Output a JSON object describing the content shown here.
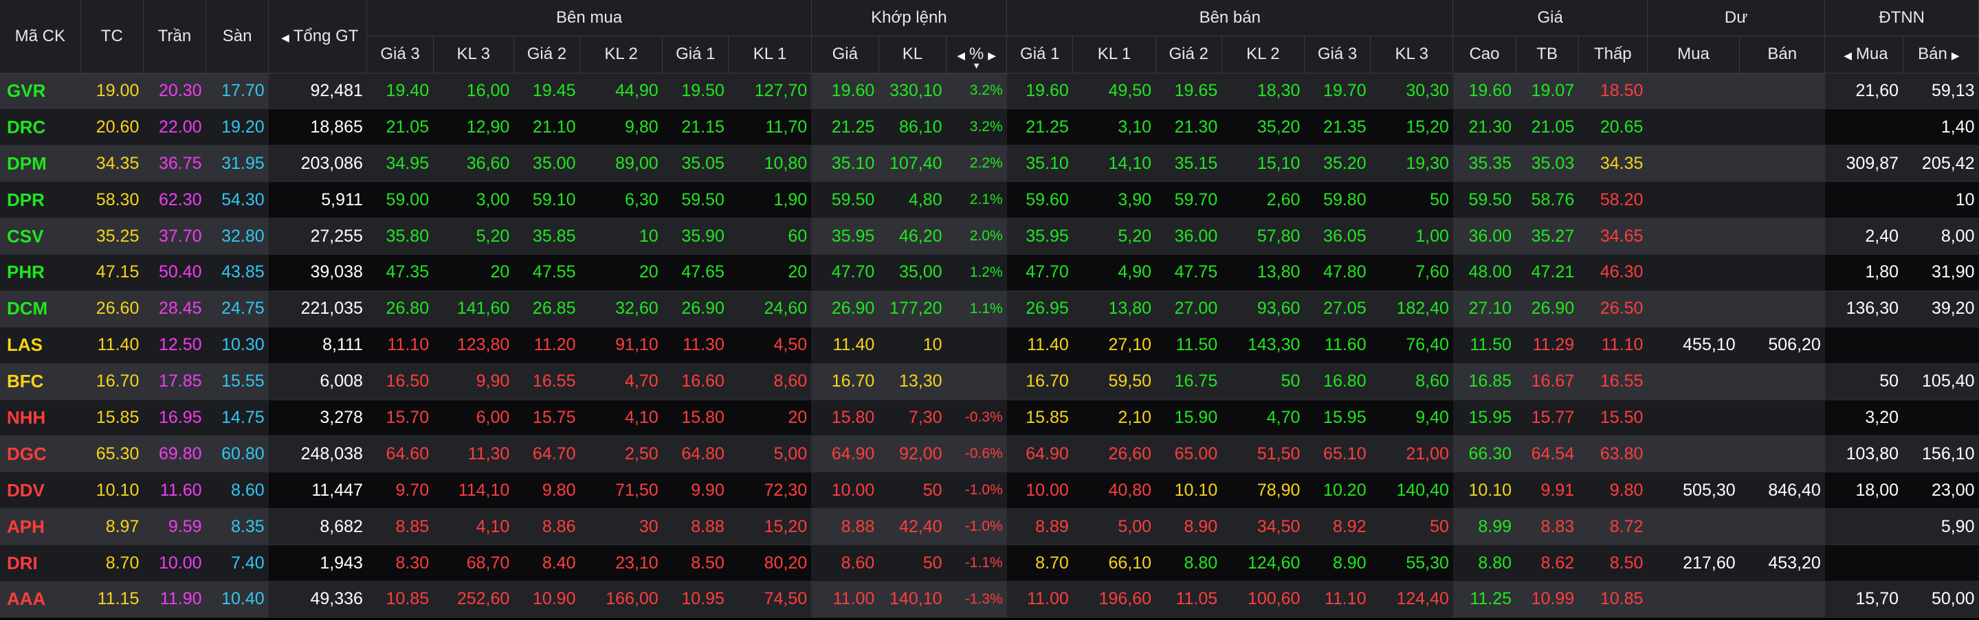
{
  "headers": {
    "symbol": "Mã CK",
    "tc": "TC",
    "tran": "Trần",
    "san": "Sàn",
    "tong_gt": "Tổng GT",
    "ben_mua": "Bên mua",
    "khop_lenh": "Khớp lệnh",
    "ben_ban": "Bên bán",
    "gia": "Giá",
    "du": "Dư",
    "dtnn": "ĐTNN",
    "gia3": "Giá 3",
    "kl3": "KL 3",
    "gia2": "Giá 2",
    "kl2": "KL 2",
    "gia1": "Giá 1",
    "kl1": "KL 1",
    "khop_gia": "Giá",
    "khop_kl": "KL",
    "pct": "%",
    "cao": "Cao",
    "tb": "TB",
    "thap": "Thấp",
    "du_mua": "Mua",
    "du_ban": "Bán",
    "nn_mua": "Mua",
    "nn_ban": "Bán"
  },
  "colors": {
    "up": "#1ee81e",
    "down": "#ff3d3d",
    "ref": "#f7d417",
    "ceil": "#f23cf2",
    "floor": "#2ec8f0",
    "white": "#ffffff"
  },
  "rows": [
    {
      "c": [
        "GVR",
        "19.00",
        "20.30",
        "17.70",
        "92,481",
        "19.40",
        "16,00",
        "19.45",
        "44,90",
        "19.50",
        "127,70",
        "19.60",
        "330,10",
        "3.2%",
        "19.60",
        "49,50",
        "19.65",
        "18,30",
        "19.70",
        "30,30",
        "19.60",
        "19.07",
        "18.50",
        "",
        "",
        "21,60",
        "59,13"
      ],
      "k": [
        "up",
        "ref",
        "ceil",
        "floor",
        "white",
        "up",
        "up",
        "up",
        "up",
        "up",
        "up",
        "up",
        "up",
        "up",
        "up",
        "up",
        "up",
        "up",
        "up",
        "up",
        "up",
        "up",
        "down",
        "white",
        "white",
        "white",
        "white"
      ]
    },
    {
      "c": [
        "DRC",
        "20.60",
        "22.00",
        "19.20",
        "18,865",
        "21.05",
        "12,90",
        "21.10",
        "9,80",
        "21.15",
        "11,70",
        "21.25",
        "86,10",
        "3.2%",
        "21.25",
        "3,10",
        "21.30",
        "35,20",
        "21.35",
        "15,20",
        "21.30",
        "21.05",
        "20.65",
        "",
        "",
        "",
        "1,40"
      ],
      "k": [
        "up",
        "ref",
        "ceil",
        "floor",
        "white",
        "up",
        "up",
        "up",
        "up",
        "up",
        "up",
        "up",
        "up",
        "up",
        "up",
        "up",
        "up",
        "up",
        "up",
        "up",
        "up",
        "up",
        "up",
        "white",
        "white",
        "white",
        "white"
      ]
    },
    {
      "c": [
        "DPM",
        "34.35",
        "36.75",
        "31.95",
        "203,086",
        "34.95",
        "36,60",
        "35.00",
        "89,00",
        "35.05",
        "10,80",
        "35.10",
        "107,40",
        "2.2%",
        "35.10",
        "14,10",
        "35.15",
        "15,10",
        "35.20",
        "19,30",
        "35.35",
        "35.03",
        "34.35",
        "",
        "",
        "309,87",
        "205,42"
      ],
      "k": [
        "up",
        "ref",
        "ceil",
        "floor",
        "white",
        "up",
        "up",
        "up",
        "up",
        "up",
        "up",
        "up",
        "up",
        "up",
        "up",
        "up",
        "up",
        "up",
        "up",
        "up",
        "up",
        "up",
        "ref",
        "white",
        "white",
        "white",
        "white"
      ]
    },
    {
      "c": [
        "DPR",
        "58.30",
        "62.30",
        "54.30",
        "5,911",
        "59.00",
        "3,00",
        "59.10",
        "6,30",
        "59.50",
        "1,90",
        "59.50",
        "4,80",
        "2.1%",
        "59.60",
        "3,90",
        "59.70",
        "2,60",
        "59.80",
        "50",
        "59.50",
        "58.76",
        "58.20",
        "",
        "",
        "",
        "10"
      ],
      "k": [
        "up",
        "ref",
        "ceil",
        "floor",
        "white",
        "up",
        "up",
        "up",
        "up",
        "up",
        "up",
        "up",
        "up",
        "up",
        "up",
        "up",
        "up",
        "up",
        "up",
        "up",
        "up",
        "up",
        "down",
        "white",
        "white",
        "white",
        "white"
      ]
    },
    {
      "c": [
        "CSV",
        "35.25",
        "37.70",
        "32.80",
        "27,255",
        "35.80",
        "5,20",
        "35.85",
        "10",
        "35.90",
        "60",
        "35.95",
        "46,20",
        "2.0%",
        "35.95",
        "5,20",
        "36.00",
        "57,80",
        "36.05",
        "1,00",
        "36.00",
        "35.27",
        "34.65",
        "",
        "",
        "2,40",
        "8,00"
      ],
      "k": [
        "up",
        "ref",
        "ceil",
        "floor",
        "white",
        "up",
        "up",
        "up",
        "up",
        "up",
        "up",
        "up",
        "up",
        "up",
        "up",
        "up",
        "up",
        "up",
        "up",
        "up",
        "up",
        "up",
        "down",
        "white",
        "white",
        "white",
        "white"
      ]
    },
    {
      "c": [
        "PHR",
        "47.15",
        "50.40",
        "43.85",
        "39,038",
        "47.35",
        "20",
        "47.55",
        "20",
        "47.65",
        "20",
        "47.70",
        "35,00",
        "1.2%",
        "47.70",
        "4,90",
        "47.75",
        "13,80",
        "47.80",
        "7,60",
        "48.00",
        "47.21",
        "46.30",
        "",
        "",
        "1,80",
        "31,90"
      ],
      "k": [
        "up",
        "ref",
        "ceil",
        "floor",
        "white",
        "up",
        "up",
        "up",
        "up",
        "up",
        "up",
        "up",
        "up",
        "up",
        "up",
        "up",
        "up",
        "up",
        "up",
        "up",
        "up",
        "up",
        "down",
        "white",
        "white",
        "white",
        "white"
      ]
    },
    {
      "c": [
        "DCM",
        "26.60",
        "28.45",
        "24.75",
        "221,035",
        "26.80",
        "141,60",
        "26.85",
        "32,60",
        "26.90",
        "24,60",
        "26.90",
        "177,20",
        "1.1%",
        "26.95",
        "13,80",
        "27.00",
        "93,60",
        "27.05",
        "182,40",
        "27.10",
        "26.90",
        "26.50",
        "",
        "",
        "136,30",
        "39,20"
      ],
      "k": [
        "up",
        "ref",
        "ceil",
        "floor",
        "white",
        "up",
        "up",
        "up",
        "up",
        "up",
        "up",
        "up",
        "up",
        "up",
        "up",
        "up",
        "up",
        "up",
        "up",
        "up",
        "up",
        "up",
        "down",
        "white",
        "white",
        "white",
        "white"
      ]
    },
    {
      "c": [
        "LAS",
        "11.40",
        "12.50",
        "10.30",
        "8,111",
        "11.10",
        "123,80",
        "11.20",
        "91,10",
        "11.30",
        "4,50",
        "11.40",
        "10",
        "",
        "11.40",
        "27,10",
        "11.50",
        "143,30",
        "11.60",
        "76,40",
        "11.50",
        "11.29",
        "11.10",
        "455,10",
        "506,20",
        "",
        ""
      ],
      "k": [
        "ref",
        "ref",
        "ceil",
        "floor",
        "white",
        "down",
        "down",
        "down",
        "down",
        "down",
        "down",
        "ref",
        "ref",
        "ref",
        "ref",
        "ref",
        "up",
        "up",
        "up",
        "up",
        "up",
        "down",
        "down",
        "white",
        "white",
        "white",
        "white"
      ]
    },
    {
      "c": [
        "BFC",
        "16.70",
        "17.85",
        "15.55",
        "6,008",
        "16.50",
        "9,90",
        "16.55",
        "4,70",
        "16.60",
        "8,60",
        "16.70",
        "13,30",
        "",
        "16.70",
        "59,50",
        "16.75",
        "50",
        "16.80",
        "8,60",
        "16.85",
        "16.67",
        "16.55",
        "",
        "",
        "50",
        "105,40"
      ],
      "k": [
        "ref",
        "ref",
        "ceil",
        "floor",
        "white",
        "down",
        "down",
        "down",
        "down",
        "down",
        "down",
        "ref",
        "ref",
        "ref",
        "ref",
        "ref",
        "up",
        "up",
        "up",
        "up",
        "up",
        "down",
        "down",
        "white",
        "white",
        "white",
        "white"
      ]
    },
    {
      "c": [
        "NHH",
        "15.85",
        "16.95",
        "14.75",
        "3,278",
        "15.70",
        "6,00",
        "15.75",
        "4,10",
        "15.80",
        "20",
        "15.80",
        "7,30",
        "-0.3%",
        "15.85",
        "2,10",
        "15.90",
        "4,70",
        "15.95",
        "9,40",
        "15.95",
        "15.77",
        "15.50",
        "",
        "",
        "3,20",
        ""
      ],
      "k": [
        "down",
        "ref",
        "ceil",
        "floor",
        "white",
        "down",
        "down",
        "down",
        "down",
        "down",
        "down",
        "down",
        "down",
        "down",
        "ref",
        "ref",
        "up",
        "up",
        "up",
        "up",
        "up",
        "down",
        "down",
        "white",
        "white",
        "white",
        "white"
      ]
    },
    {
      "c": [
        "DGC",
        "65.30",
        "69.80",
        "60.80",
        "248,038",
        "64.60",
        "11,30",
        "64.70",
        "2,50",
        "64.80",
        "5,00",
        "64.90",
        "92,00",
        "-0.6%",
        "64.90",
        "26,60",
        "65.00",
        "51,50",
        "65.10",
        "21,00",
        "66.30",
        "64.54",
        "63.80",
        "",
        "",
        "103,80",
        "156,10"
      ],
      "k": [
        "down",
        "ref",
        "ceil",
        "floor",
        "white",
        "down",
        "down",
        "down",
        "down",
        "down",
        "down",
        "down",
        "down",
        "down",
        "down",
        "down",
        "down",
        "down",
        "down",
        "down",
        "up",
        "down",
        "down",
        "white",
        "white",
        "white",
        "white"
      ]
    },
    {
      "c": [
        "DDV",
        "10.10",
        "11.60",
        "8.60",
        "11,447",
        "9.70",
        "114,10",
        "9.80",
        "71,50",
        "9.90",
        "72,30",
        "10.00",
        "50",
        "-1.0%",
        "10.00",
        "40,80",
        "10.10",
        "78,90",
        "10.20",
        "140,40",
        "10.10",
        "9.91",
        "9.80",
        "505,30",
        "846,40",
        "18,00",
        "23,00"
      ],
      "k": [
        "down",
        "ref",
        "ceil",
        "floor",
        "white",
        "down",
        "down",
        "down",
        "down",
        "down",
        "down",
        "down",
        "down",
        "down",
        "down",
        "down",
        "ref",
        "ref",
        "up",
        "up",
        "ref",
        "down",
        "down",
        "white",
        "white",
        "white",
        "white"
      ]
    },
    {
      "c": [
        "APH",
        "8.97",
        "9.59",
        "8.35",
        "8,682",
        "8.85",
        "4,10",
        "8.86",
        "30",
        "8.88",
        "15,20",
        "8.88",
        "42,40",
        "-1.0%",
        "8.89",
        "5,00",
        "8.90",
        "34,50",
        "8.92",
        "50",
        "8.99",
        "8.83",
        "8.72",
        "",
        "",
        "",
        "5,90"
      ],
      "k": [
        "down",
        "ref",
        "ceil",
        "floor",
        "white",
        "down",
        "down",
        "down",
        "down",
        "down",
        "down",
        "down",
        "down",
        "down",
        "down",
        "down",
        "down",
        "down",
        "down",
        "down",
        "up",
        "down",
        "down",
        "white",
        "white",
        "white",
        "white"
      ]
    },
    {
      "c": [
        "DRI",
        "8.70",
        "10.00",
        "7.40",
        "1,943",
        "8.30",
        "68,70",
        "8.40",
        "23,10",
        "8.50",
        "80,20",
        "8.60",
        "50",
        "-1.1%",
        "8.70",
        "66,10",
        "8.80",
        "124,60",
        "8.90",
        "55,30",
        "8.80",
        "8.62",
        "8.50",
        "217,60",
        "453,20",
        "",
        ""
      ],
      "k": [
        "down",
        "ref",
        "ceil",
        "floor",
        "white",
        "down",
        "down",
        "down",
        "down",
        "down",
        "down",
        "down",
        "down",
        "down",
        "ref",
        "ref",
        "up",
        "up",
        "up",
        "up",
        "up",
        "down",
        "down",
        "white",
        "white",
        "white",
        "white"
      ]
    },
    {
      "c": [
        "AAA",
        "11.15",
        "11.90",
        "10.40",
        "49,336",
        "10.85",
        "252,60",
        "10.90",
        "166,00",
        "10.95",
        "74,50",
        "11.00",
        "140,10",
        "-1.3%",
        "11.00",
        "196,60",
        "11.05",
        "100,60",
        "11.10",
        "124,40",
        "11.25",
        "10.99",
        "10.85",
        "",
        "",
        "15,70",
        "50,00"
      ],
      "k": [
        "down",
        "ref",
        "ceil",
        "floor",
        "white",
        "down",
        "down",
        "down",
        "down",
        "down",
        "down",
        "down",
        "down",
        "down",
        "down",
        "down",
        "down",
        "down",
        "down",
        "down",
        "up",
        "down",
        "down",
        "white",
        "white",
        "white",
        "white"
      ]
    }
  ]
}
